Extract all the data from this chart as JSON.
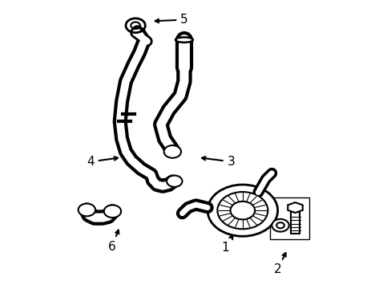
{
  "background_color": "#ffffff",
  "line_color": "#000000",
  "line_width": 1.5,
  "label_fontsize": 11
}
